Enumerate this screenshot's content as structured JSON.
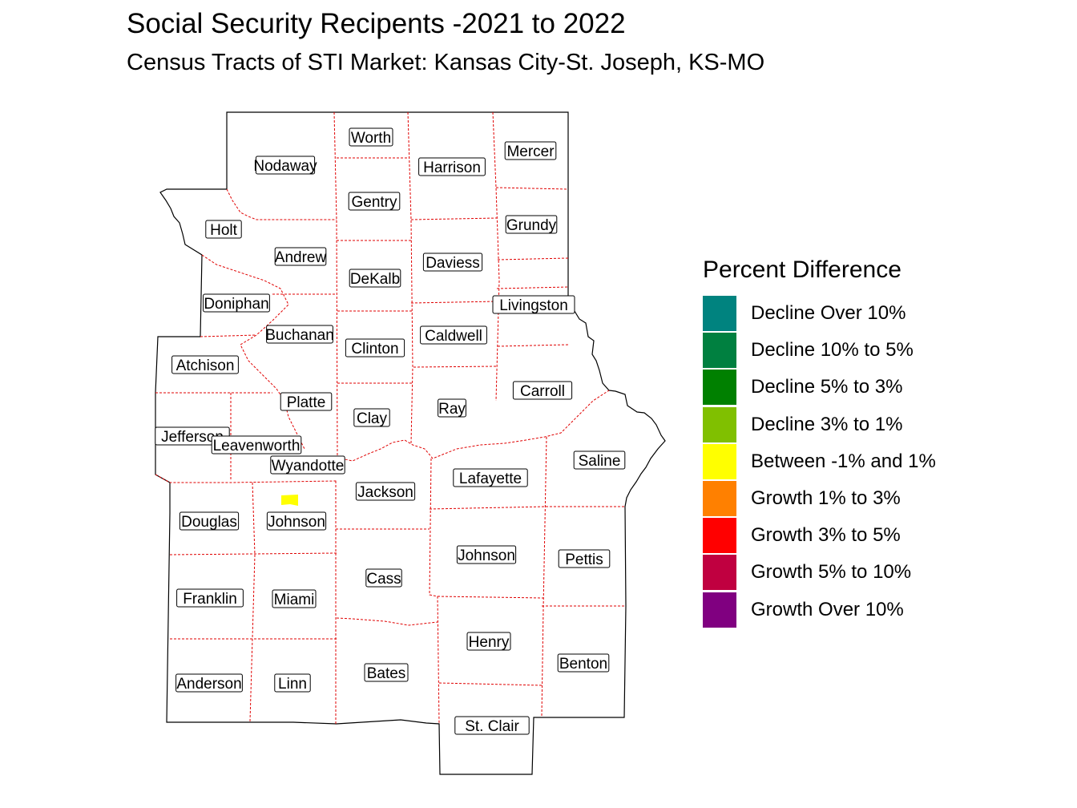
{
  "title": "Social Security Recipents -2021 to 2022",
  "subtitle": "Census Tracts of STI Market: Kansas City-St. Joseph, KS-MO",
  "legend": {
    "title": "Percent Difference",
    "items": [
      {
        "label": "Decline Over 10%",
        "color": "#00837F"
      },
      {
        "label": "Decline 10% to 5%",
        "color": "#008040"
      },
      {
        "label": "Decline 5% to 3%",
        "color": "#008000"
      },
      {
        "label": "Decline 3% to 1%",
        "color": "#80C000"
      },
      {
        "label": "Between -1% and 1%",
        "color": "#FFFF00"
      },
      {
        "label": "Growth 1% to 3%",
        "color": "#FF8000"
      },
      {
        "label": "Growth 3% to 5%",
        "color": "#FF0000"
      },
      {
        "label": "Growth 5% to 10%",
        "color": "#C00040"
      },
      {
        "label": "Growth Over 10%",
        "color": "#800080"
      }
    ]
  },
  "map": {
    "highlighted_tract": {
      "category": "Between -1% and 1%",
      "color": "#FFFF00"
    },
    "counties": [
      "Worth",
      "Mercer",
      "Nodaway",
      "Harrison",
      "Gentry",
      "Grundy",
      "Holt",
      "Andrew",
      "Daviess",
      "DeKalb",
      "Livingston",
      "Doniphan",
      "Buchanan",
      "Caldwell",
      "Clinton",
      "Atchison",
      "Carroll",
      "Platte",
      "Clay",
      "Ray",
      "Jefferson",
      "Leavenworth",
      "Saline",
      "Wyandotte",
      "Lafayette",
      "Jackson",
      "Douglas",
      "Johnson",
      "Johnson",
      "Pettis",
      "Cass",
      "Franklin",
      "Miami",
      "Henry",
      "Benton",
      "Bates",
      "Anderson",
      "Linn",
      "St. Clair"
    ]
  }
}
